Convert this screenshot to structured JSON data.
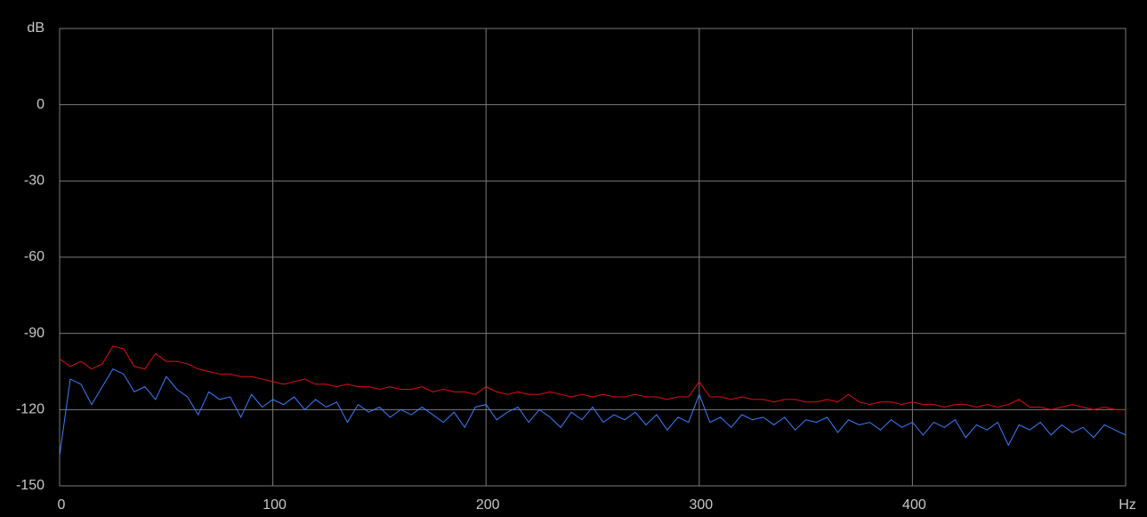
{
  "chart_data": {
    "type": "line",
    "x": [
      0,
      5,
      10,
      15,
      20,
      25,
      30,
      35,
      40,
      45,
      50,
      55,
      60,
      65,
      70,
      75,
      80,
      85,
      90,
      95,
      100,
      105,
      110,
      115,
      120,
      125,
      130,
      135,
      140,
      145,
      150,
      155,
      160,
      165,
      170,
      175,
      180,
      185,
      190,
      195,
      200,
      205,
      210,
      215,
      220,
      225,
      230,
      235,
      240,
      245,
      250,
      255,
      260,
      265,
      270,
      275,
      280,
      285,
      290,
      295,
      300,
      305,
      310,
      315,
      320,
      325,
      330,
      335,
      340,
      345,
      350,
      355,
      360,
      365,
      370,
      375,
      380,
      385,
      390,
      395,
      400,
      405,
      410,
      415,
      420,
      425,
      430,
      435,
      440,
      445,
      450,
      455,
      460,
      465,
      470,
      475,
      480,
      485,
      490,
      495,
      500
    ],
    "series": [
      {
        "color": "#e01010",
        "values": [
          -100,
          -103,
          -101,
          -104,
          -102,
          -95,
          -96,
          -103,
          -104,
          -98,
          -101,
          -101,
          -102,
          -104,
          -105,
          -106,
          -106,
          -107,
          -107,
          -108,
          -109,
          -110,
          -109,
          -108,
          -110,
          -110,
          -111,
          -110,
          -111,
          -111,
          -112,
          -111,
          -112,
          -112,
          -111,
          -113,
          -112,
          -113,
          -113,
          -114,
          -111,
          -113,
          -114,
          -113,
          -114,
          -114,
          -113,
          -114,
          -115,
          -114,
          -115,
          -114,
          -115,
          -115,
          -114,
          -115,
          -115,
          -116,
          -115,
          -115,
          -109,
          -115,
          -115,
          -116,
          -115,
          -116,
          -116,
          -117,
          -116,
          -116,
          -117,
          -117,
          -116,
          -117,
          -114,
          -117,
          -118,
          -117,
          -117,
          -118,
          -117,
          -118,
          -118,
          -119,
          -118,
          -118,
          -119,
          -118,
          -119,
          -118,
          -116,
          -119,
          -119,
          -120,
          -119,
          -118,
          -119,
          -120,
          -119,
          -120,
          -120
        ]
      },
      {
        "color": "#3a7fff",
        "values": [
          -138,
          -108,
          -110,
          -118,
          -111,
          -104,
          -106,
          -113,
          -111,
          -116,
          -107,
          -112,
          -115,
          -122,
          -113,
          -116,
          -115,
          -123,
          -114,
          -119,
          -116,
          -118,
          -115,
          -120,
          -116,
          -119,
          -117,
          -125,
          -118,
          -121,
          -119,
          -123,
          -120,
          -122,
          -119,
          -122,
          -125,
          -121,
          -127,
          -119,
          -118,
          -124,
          -121,
          -119,
          -125,
          -120,
          -123,
          -127,
          -121,
          -124,
          -119,
          -125,
          -122,
          -124,
          -121,
          -126,
          -122,
          -128,
          -123,
          -125,
          -114,
          -125,
          -123,
          -127,
          -122,
          -124,
          -123,
          -126,
          -123,
          -128,
          -124,
          -125,
          -123,
          -129,
          -124,
          -126,
          -125,
          -128,
          -124,
          -127,
          -125,
          -130,
          -125,
          -127,
          -124,
          -131,
          -126,
          -128,
          -125,
          -134,
          -126,
          -128,
          -125,
          -130,
          -126,
          -129,
          -127,
          -131,
          -126,
          -128,
          -130
        ]
      }
    ],
    "xlim": [
      0,
      500
    ],
    "ylim": [
      -150,
      30
    ],
    "xticks": [
      0,
      100,
      200,
      300,
      400,
      {
        "value": 500,
        "label": "Hz"
      }
    ],
    "yticks": [
      -150,
      -120,
      -90,
      -60,
      -30,
      0,
      {
        "value": 30,
        "label": "dB"
      }
    ],
    "grid": true
  }
}
